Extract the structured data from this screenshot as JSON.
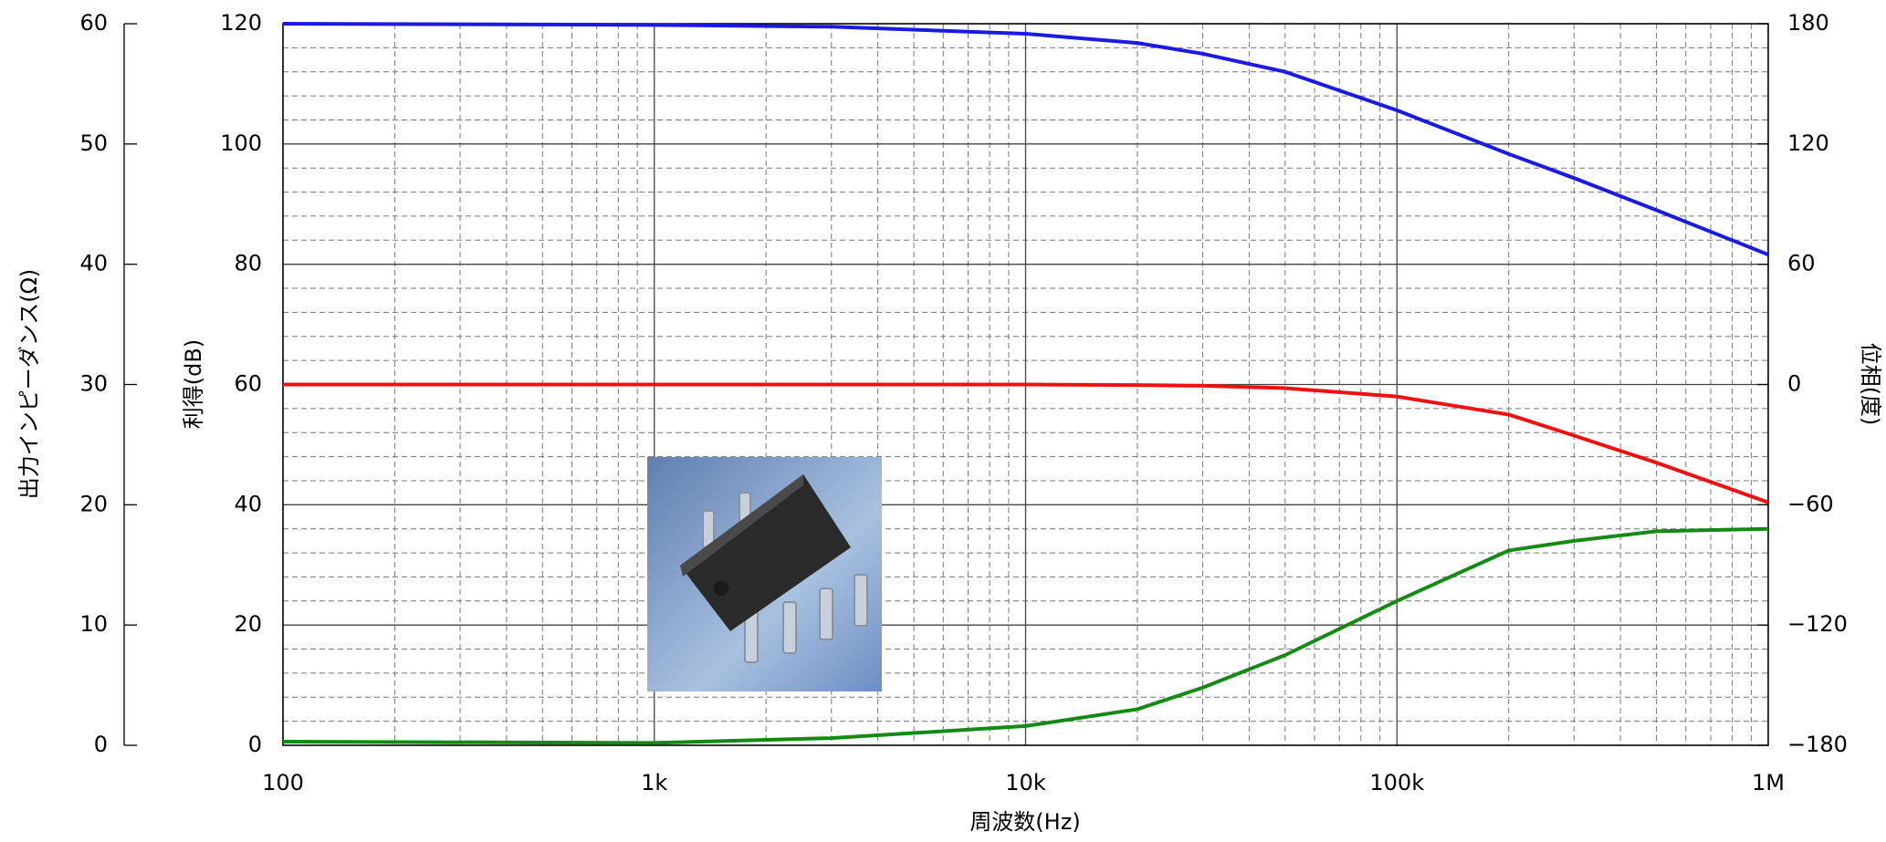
{
  "chart_data": {
    "type": "line",
    "xlabel": "周波数(Hz)",
    "ylabel": "利得(dB)",
    "y2label": "位相(度)",
    "y3label": "出力インピーダンス(Ω)",
    "xscale": "log",
    "grid": true,
    "xlim": [
      100,
      1000000
    ],
    "xticks": [
      100,
      {
        "value": 1000,
        "label": "1k"
      },
      {
        "value": 10000,
        "label": "10k"
      },
      {
        "value": 100000,
        "label": "100k"
      },
      {
        "value": 1000000,
        "label": "1M"
      }
    ],
    "ylim": [
      0,
      120
    ],
    "yticks": [
      0,
      20,
      40,
      60,
      80,
      100,
      120
    ],
    "y2lim": [
      -180,
      180
    ],
    "y2ticks": [
      {
        "value": -180,
        "label": "−180"
      },
      {
        "value": -120,
        "label": "−120"
      },
      {
        "value": -60,
        "label": "−60"
      },
      0,
      60,
      120,
      180
    ],
    "y3lim": [
      0,
      60
    ],
    "y3ticks": [
      0,
      10,
      20,
      30,
      40,
      50,
      60
    ],
    "x": [
      100,
      1000,
      3000,
      10000,
      20000,
      30000,
      50000,
      100000,
      200000,
      300000,
      500000,
      1000000
    ],
    "series": [
      {
        "color": "#ee1111",
        "axis": "y",
        "values": [
          60,
          60,
          60,
          60,
          59.9,
          59.8,
          59.4,
          58,
          55,
          51.5,
          47,
          40.4
        ]
      },
      {
        "color": "#1a1ae0",
        "axis": "y2",
        "values": [
          180,
          179.4,
          178.5,
          175,
          170.4,
          165,
          156,
          136.8,
          115,
          103,
          87,
          64.8
        ]
      },
      {
        "color": "#138a13",
        "axis": "y3",
        "values": [
          0.3,
          0.2,
          0.6,
          1.6,
          3,
          4.8,
          7.5,
          12,
          16.2,
          17,
          17.8,
          18
        ]
      }
    ]
  }
}
